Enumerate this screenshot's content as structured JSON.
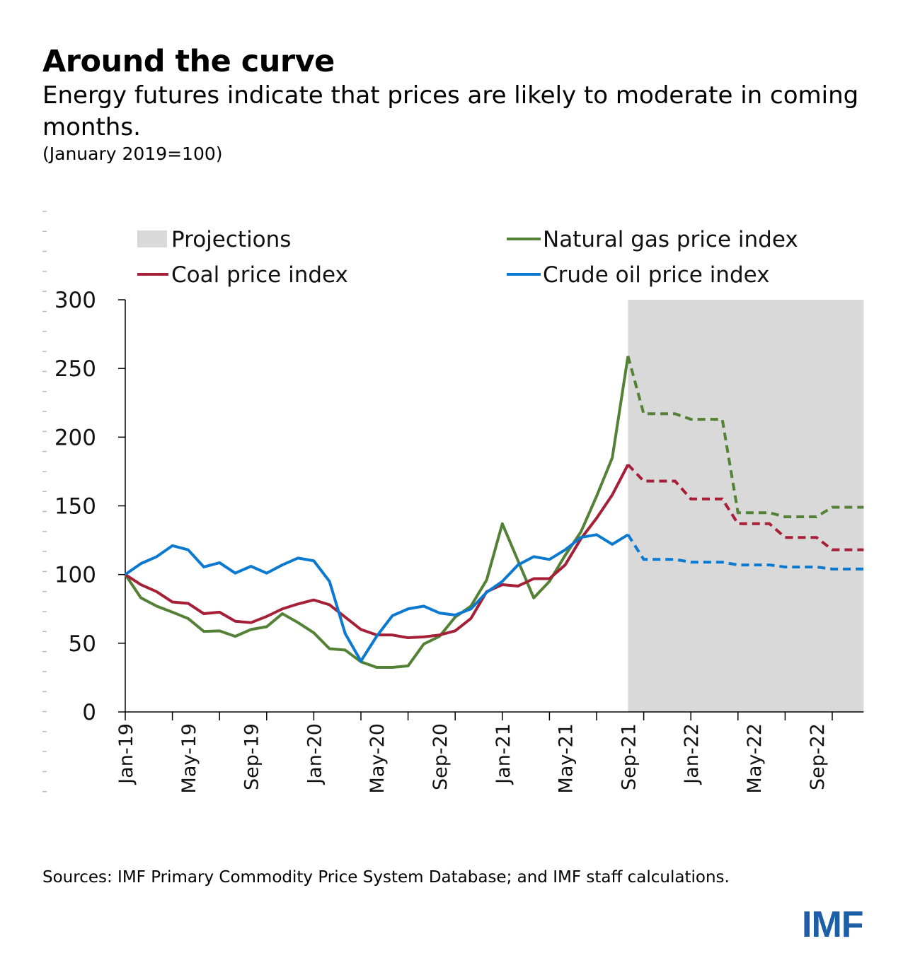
{
  "header": {
    "title": "Around the curve",
    "subtitle": "Energy futures indicate that prices are likely to moderate in coming months.",
    "unit": "(January 2019=100)"
  },
  "footer": {
    "sources": "Sources: IMF Primary Commodity Price System Database; and IMF staff calculations.",
    "logo": "IMF"
  },
  "chart_data": {
    "type": "line",
    "title": "Around the curve",
    "ylabel": "",
    "xlabel": "",
    "ylim": [
      0,
      300
    ],
    "yticks": [
      0,
      50,
      100,
      150,
      200,
      250,
      300
    ],
    "x_start": "Jan-19",
    "x_end": "Dec-22",
    "xtick_labels": [
      "Jan-19",
      "May-19",
      "Sep-19",
      "Jan-20",
      "May-20",
      "Sep-20",
      "Jan-21",
      "May-21",
      "Sep-21",
      "Jan-22",
      "May-22",
      "Sep-22"
    ],
    "grid": false,
    "legend_position": "top",
    "projection_shading": {
      "label": "Projections",
      "start": "Sep-21",
      "end": "Dec-22",
      "color": "#d9d9d9"
    },
    "series": [
      {
        "name": "Natural gas price index",
        "color": "#538135",
        "actual": [
          100,
          83,
          77,
          72.6,
          68,
          58.6,
          59,
          55,
          60,
          62,
          71.5,
          65,
          57.6,
          46,
          45,
          36.5,
          32.4,
          32.4,
          33.5,
          49.4,
          55,
          69,
          77,
          96,
          137,
          110,
          83,
          95,
          114,
          131,
          157,
          185,
          259
        ],
        "projection": [
          259,
          217,
          217,
          217,
          213,
          213,
          213,
          145,
          145,
          145,
          142,
          142,
          142,
          149,
          149,
          149
        ]
      },
      {
        "name": "Coal price index",
        "color": "#a51f37",
        "actual": [
          100,
          92.6,
          87.5,
          80,
          79,
          71.5,
          72.6,
          66,
          65,
          69.5,
          75,
          78.6,
          81.5,
          78,
          69,
          60,
          56,
          56,
          54,
          54.6,
          56,
          59,
          68,
          87.5,
          92.6,
          91.6,
          97,
          97,
          107,
          126,
          141,
          158,
          180
        ],
        "projection": [
          180,
          168,
          168,
          168,
          155,
          155,
          155,
          137,
          137,
          137,
          127,
          127,
          127,
          118,
          118,
          118
        ]
      },
      {
        "name": "Crude oil price index",
        "color": "#0b79d0",
        "actual": [
          100,
          108,
          113,
          121,
          118,
          105.5,
          108.6,
          101,
          106,
          101,
          107,
          112,
          110,
          95,
          57,
          37,
          55,
          70,
          75,
          77,
          72,
          70.5,
          75,
          87,
          95,
          107,
          113,
          111,
          118,
          127,
          129,
          122,
          129
        ],
        "projection": [
          129,
          111,
          111,
          111,
          109,
          109,
          109,
          107,
          107,
          107,
          105.5,
          105.5,
          105.5,
          104,
          104,
          104
        ]
      }
    ]
  }
}
